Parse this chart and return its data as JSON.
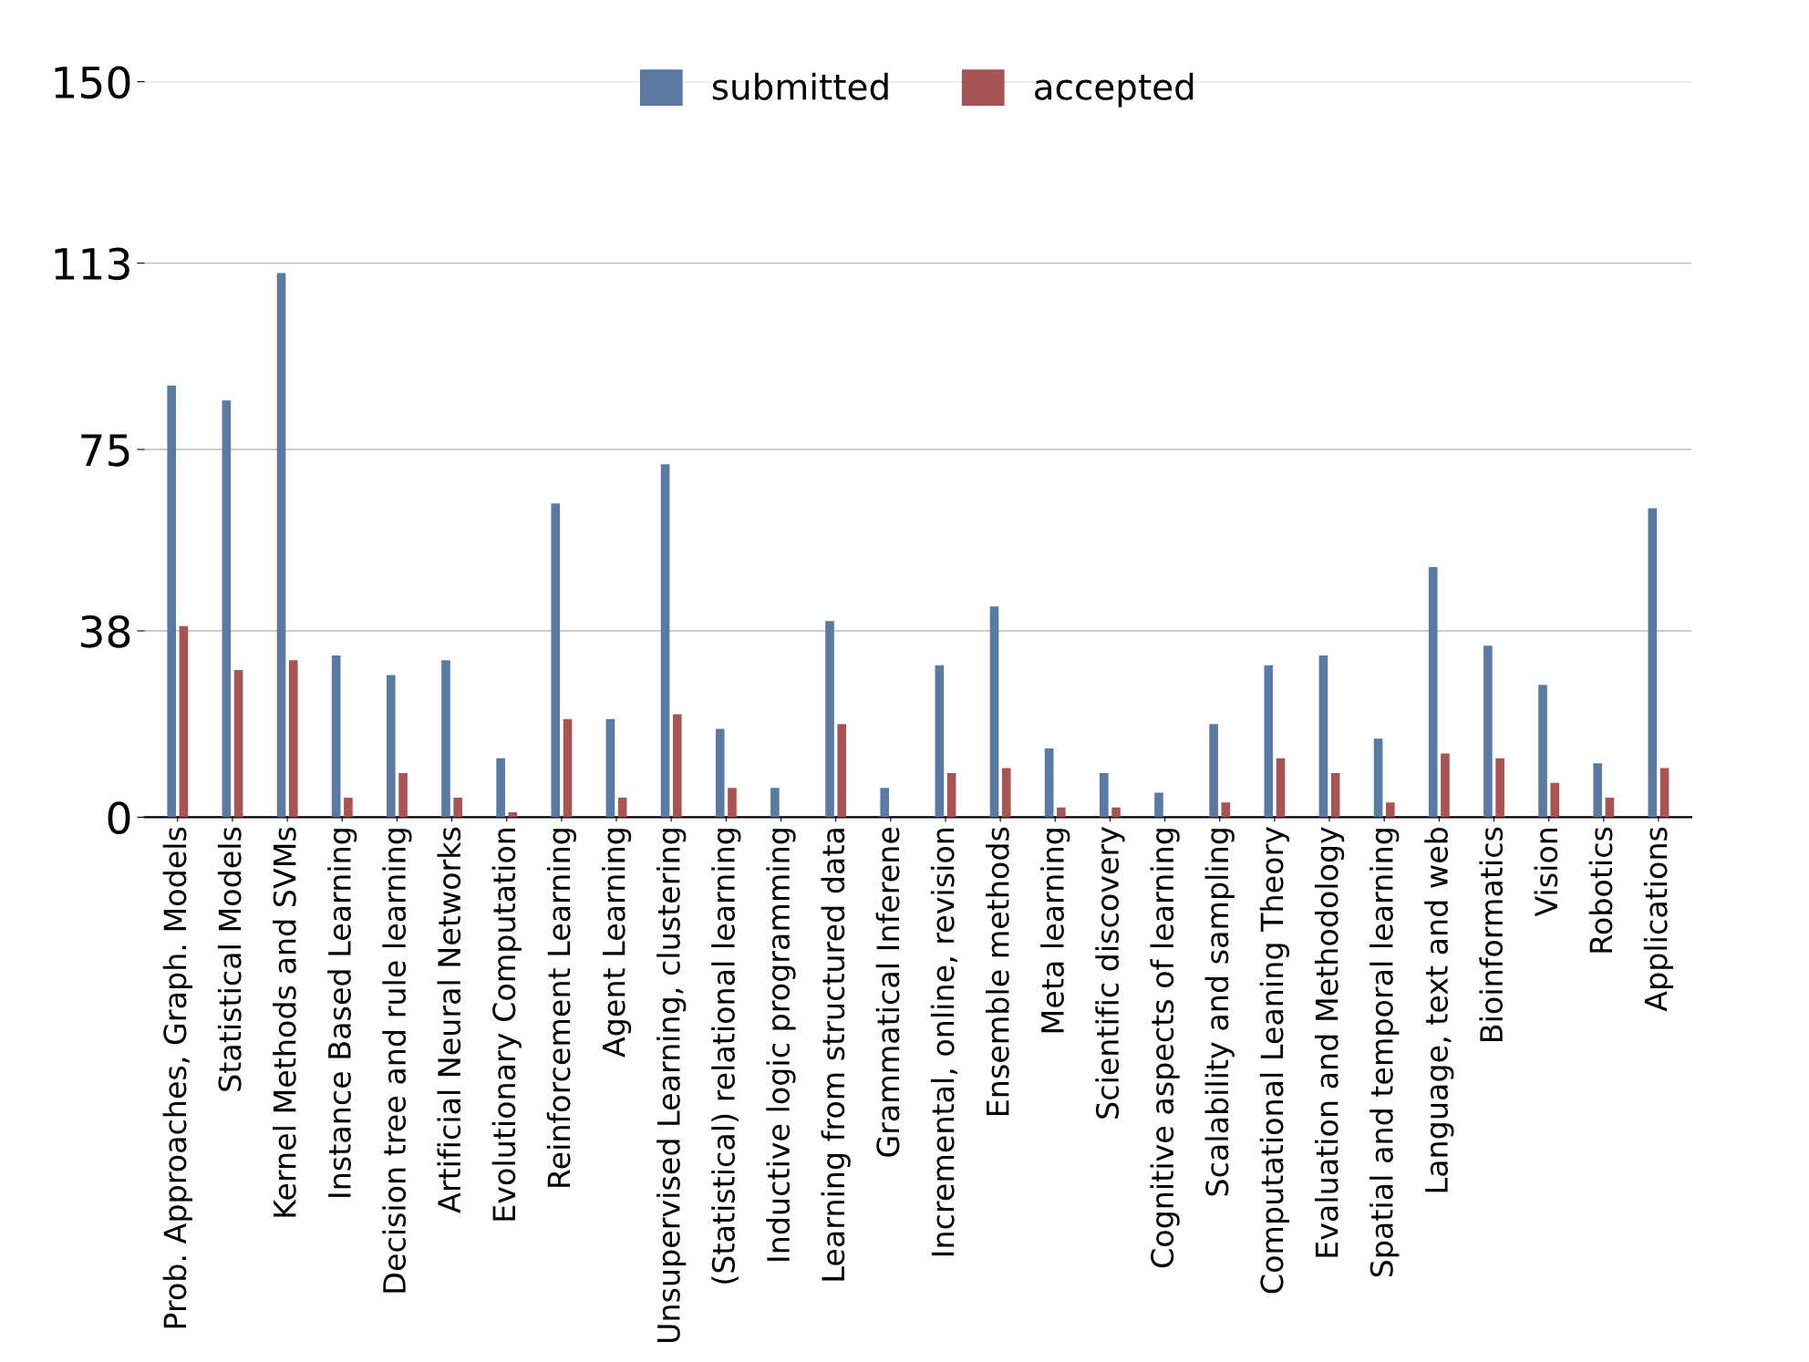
{
  "chart_data": {
    "type": "bar",
    "categories": [
      "Prob. Approaches, Graph. Models",
      "Statistical Models",
      "Kernel Methods and SVMs",
      "Instance Based Learning",
      "Decision tree and rule learning",
      "Artificial Neural Networks",
      "Evolutionary Computation",
      "Reinforcement Learning",
      "Agent Learning",
      "Unsupervised Learning, clustering",
      "(Statistical) relational learning",
      "Inductive logic programming",
      "Learning from structured data",
      "Grammatical Inferene",
      "Incremental, online, revision",
      "Ensemble methods",
      "Meta learning",
      "Scientific discovery",
      "Cognitive aspects of learning",
      "Scalability and sampling",
      "Computational Leaning Theory",
      "Evaluation and Methodology",
      "Spatial and temporal learning",
      "Language, text and web",
      "Bioinformatics",
      "Vision",
      "Robotics",
      "Applications"
    ],
    "series": [
      {
        "name": "submitted",
        "color": "#5a7aa2",
        "values": [
          88,
          85,
          111,
          33,
          29,
          32,
          12,
          64,
          20,
          72,
          18,
          6,
          40,
          6,
          31,
          43,
          14,
          9,
          5,
          19,
          31,
          33,
          16,
          51,
          35,
          27,
          11,
          63
        ]
      },
      {
        "name": "accepted",
        "color": "#a65454",
        "values": [
          39,
          30,
          32,
          4,
          9,
          4,
          1,
          20,
          4,
          21,
          6,
          0,
          19,
          0,
          9,
          10,
          2,
          2,
          0,
          3,
          12,
          9,
          3,
          13,
          12,
          7,
          4,
          10
        ]
      }
    ],
    "ylim": [
      0,
      150
    ],
    "yticks": [
      0,
      38,
      75,
      113,
      150
    ],
    "grid": "y",
    "legend": "top"
  }
}
